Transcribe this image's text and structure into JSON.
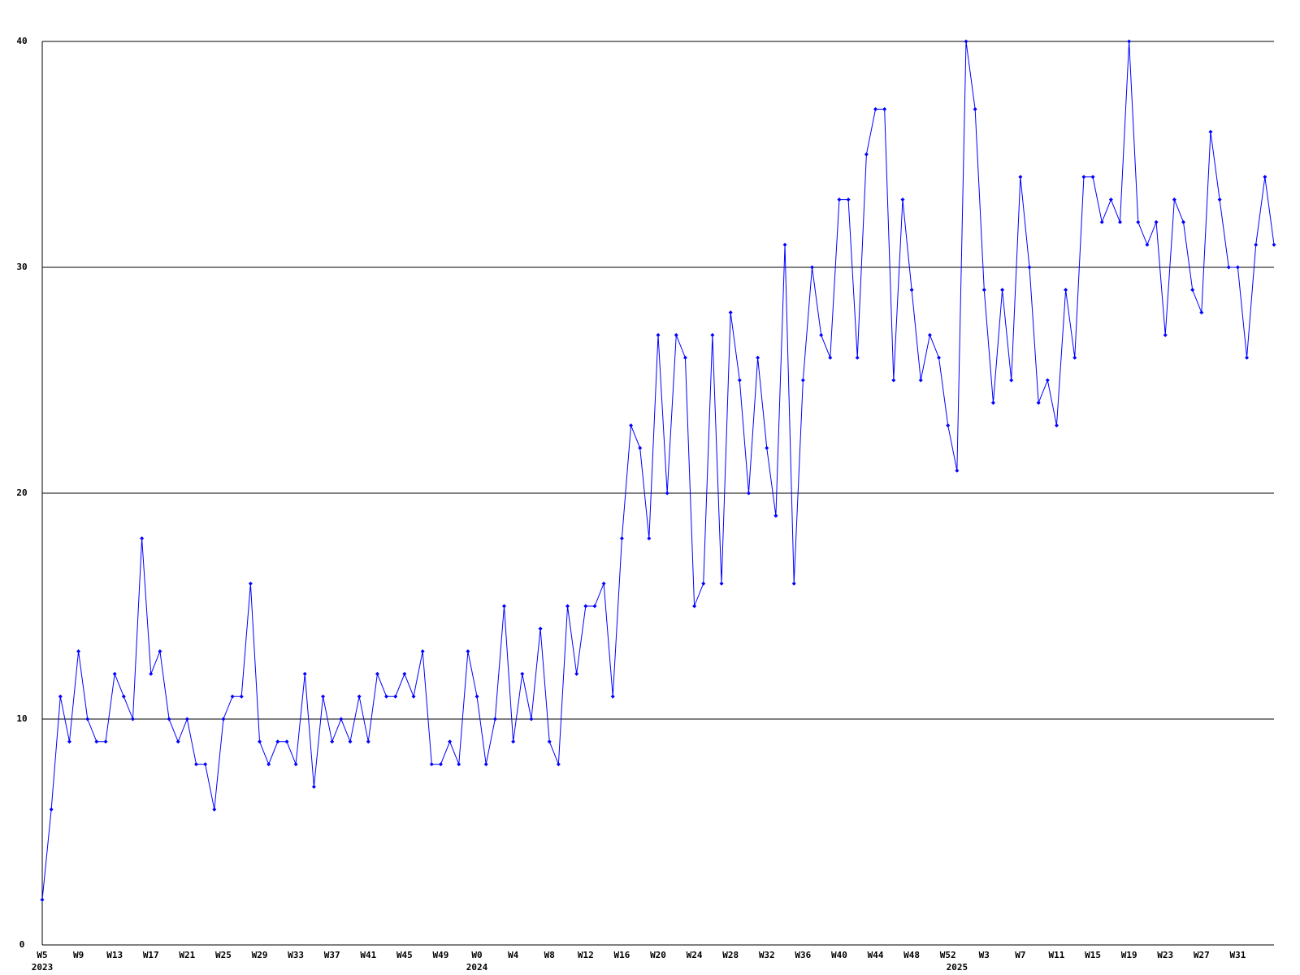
{
  "chart_data": {
    "type": "line",
    "categories": [
      "W5",
      null,
      null,
      null,
      "W9",
      null,
      null,
      null,
      "W13",
      null,
      null,
      null,
      "W17",
      null,
      null,
      null,
      "W21",
      null,
      null,
      null,
      "W25",
      null,
      null,
      null,
      "W29",
      null,
      null,
      null,
      "W33",
      null,
      null,
      null,
      "W37",
      null,
      null,
      null,
      "W41",
      null,
      null,
      null,
      "W45",
      null,
      null,
      null,
      "W49",
      null,
      null,
      null,
      "W0",
      null,
      null,
      null,
      "W4",
      null,
      null,
      null,
      "W8",
      null,
      null,
      null,
      "W12",
      null,
      null,
      null,
      "W16",
      null,
      null,
      null,
      "W20",
      null,
      null,
      null,
      "W24",
      null,
      null,
      null,
      "W28",
      null,
      null,
      null,
      "W32",
      null,
      null,
      null,
      "W36",
      null,
      null,
      null,
      "W40",
      null,
      null,
      null,
      "W44",
      null,
      null,
      null,
      "W48",
      null,
      null,
      null,
      "W52",
      null,
      null,
      null,
      "W3",
      null,
      null,
      null,
      "W7",
      null,
      null,
      null,
      "W11",
      null,
      null,
      null,
      "W15",
      null,
      null,
      null,
      "W19",
      null,
      null,
      null,
      "W23",
      null,
      null,
      null,
      "W27",
      null,
      null,
      null,
      "W31",
      null,
      null,
      null,
      null
    ],
    "category_years": [
      "2023",
      null,
      null,
      null,
      null,
      null,
      null,
      null,
      null,
      null,
      null,
      null,
      null,
      null,
      null,
      null,
      null,
      null,
      null,
      null,
      null,
      null,
      null,
      null,
      null,
      null,
      null,
      null,
      null,
      null,
      null,
      null,
      null,
      null,
      null,
      null,
      null,
      null,
      null,
      null,
      null,
      null,
      null,
      null,
      null,
      null,
      null,
      null,
      "2024",
      null,
      null,
      null,
      null,
      null,
      null,
      null,
      null,
      null,
      null,
      null,
      null,
      null,
      null,
      null,
      null,
      null,
      null,
      null,
      null,
      null,
      null,
      null,
      null,
      null,
      null,
      null,
      null,
      null,
      null,
      null,
      null,
      null,
      null,
      null,
      null,
      null,
      null,
      null,
      null,
      null,
      null,
      null,
      null,
      null,
      null,
      null,
      null,
      null,
      null,
      null,
      null,
      "2025",
      null,
      null,
      null,
      null,
      null,
      null,
      null,
      null,
      null,
      null,
      null,
      null,
      null,
      null,
      null,
      null,
      null,
      null,
      null,
      null,
      null,
      null,
      null,
      null,
      null,
      null,
      null,
      null,
      null,
      null,
      null,
      null,
      null,
      null,
      null
    ],
    "series": [
      {
        "color": "#0000ff",
        "values": [
          2,
          6,
          11,
          9,
          13,
          10,
          9,
          9,
          12,
          11,
          10,
          18,
          12,
          13,
          10,
          9,
          10,
          8,
          8,
          6,
          10,
          11,
          11,
          16,
          9,
          8,
          9,
          9,
          8,
          12,
          7,
          11,
          9,
          10,
          9,
          11,
          9,
          12,
          11,
          11,
          12,
          11,
          13,
          8,
          8,
          9,
          8,
          13,
          11,
          8,
          10,
          15,
          9,
          12,
          10,
          14,
          9,
          8,
          15,
          12,
          15,
          15,
          16,
          11,
          18,
          23,
          22,
          18,
          27,
          20,
          27,
          26,
          15,
          16,
          27,
          16,
          28,
          25,
          20,
          26,
          22,
          19,
          31,
          16,
          25,
          30,
          27,
          26,
          33,
          33,
          26,
          35,
          37,
          37,
          25,
          33,
          29,
          25,
          27,
          26,
          23,
          21,
          40,
          37,
          29,
          24,
          29,
          25,
          34,
          30,
          24,
          25,
          23,
          29,
          26,
          34,
          34,
          32,
          33,
          32,
          40,
          32,
          31,
          32,
          27,
          33,
          32,
          29,
          28,
          36,
          33,
          30,
          30,
          26,
          31,
          34,
          31
        ]
      }
    ],
    "ylim": [
      0,
      40
    ],
    "yticks": [
      0,
      10,
      20,
      30,
      40
    ],
    "grid": true
  }
}
